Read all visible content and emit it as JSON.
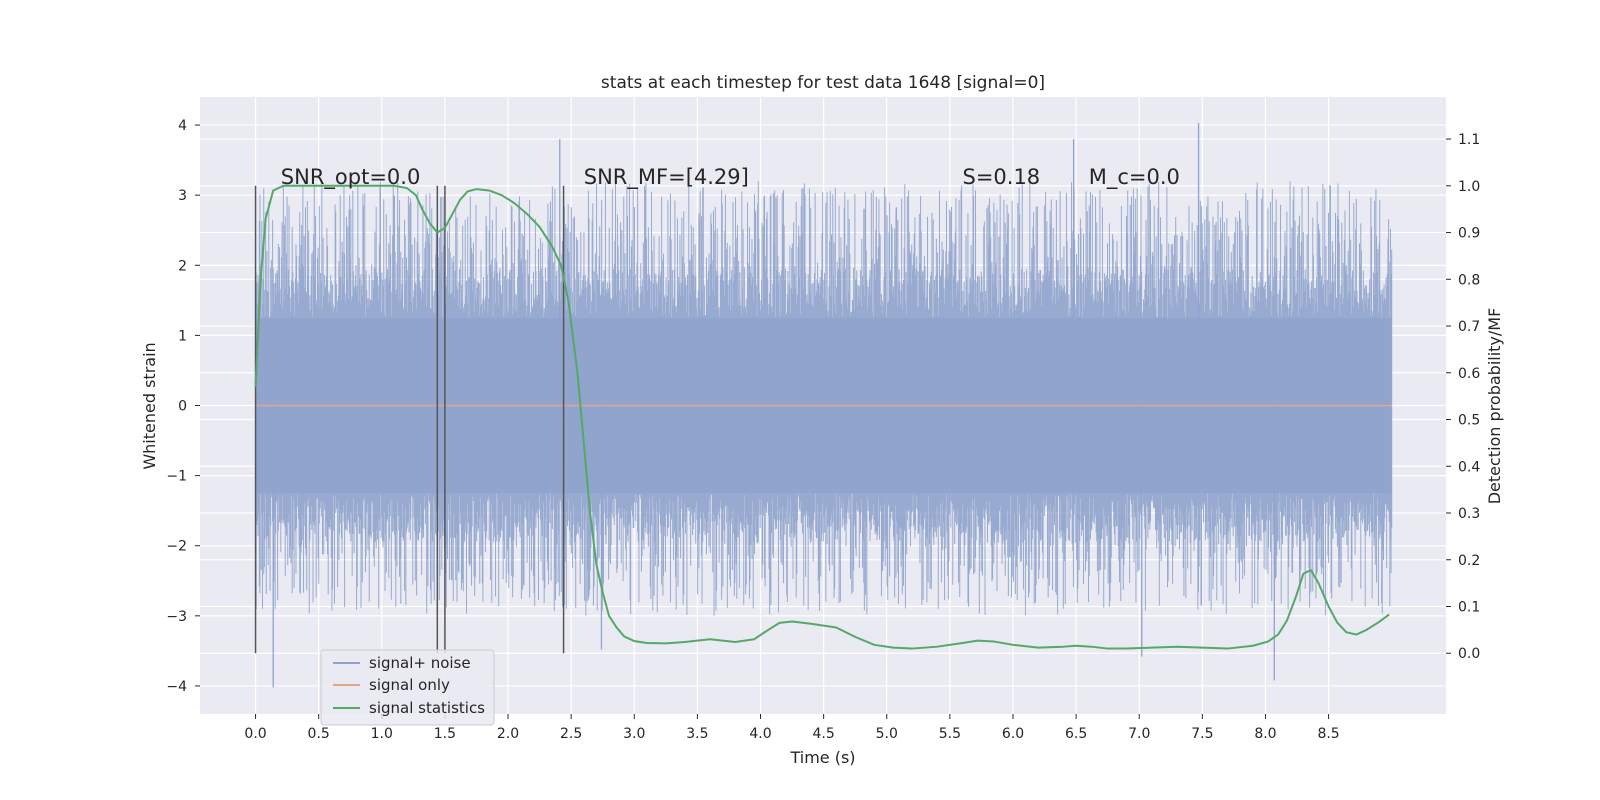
{
  "chart_data": {
    "type": "line",
    "title": "stats at each timestep for test data 1648 [signal=0]",
    "xlabel": "Time (s)",
    "ylabel": "Whitened strain",
    "y2label": "Detection probability/MF",
    "xlim": [
      -0.44,
      9.43
    ],
    "ylim": [
      -4.4,
      4.4
    ],
    "y2lim": [
      -0.13,
      1.19
    ],
    "x_ticks": [
      0.0,
      0.5,
      1.0,
      1.5,
      2.0,
      2.5,
      3.0,
      3.5,
      4.0,
      4.5,
      5.0,
      5.5,
      6.0,
      6.5,
      7.0,
      7.5,
      8.0,
      8.5
    ],
    "x_tick_labels": [
      "0.0",
      "0.5",
      "1.0",
      "1.5",
      "2.0",
      "2.5",
      "3.0",
      "3.5",
      "4.0",
      "4.5",
      "5.0",
      "5.5",
      "6.0",
      "6.5",
      "7.0",
      "7.5",
      "8.0",
      "8.5"
    ],
    "y_ticks": [
      4,
      3,
      2,
      1,
      0,
      -1,
      -2,
      -3,
      -4
    ],
    "y_tick_labels": [
      "4",
      "3",
      "2",
      "1",
      "0",
      "−1",
      "−2",
      "−3",
      "−4"
    ],
    "y2_ticks": [
      1.1,
      1.0,
      0.9,
      0.8,
      0.7,
      0.6,
      0.5,
      0.4,
      0.3,
      0.2,
      0.1,
      0.0
    ],
    "y2_tick_labels": [
      "1.1",
      "1.0",
      "0.9",
      "0.8",
      "0.7",
      "0.6",
      "0.5",
      "0.4",
      "0.3",
      "0.2",
      "0.1",
      "0.0"
    ],
    "grid": true,
    "legend_position": "lower-left",
    "legend": [
      {
        "label": "signal+ noise",
        "color": "#8fa3cc"
      },
      {
        "label": "signal only",
        "color": "#e1a68b"
      },
      {
        "label": "signal statistics",
        "color": "#55a868"
      }
    ],
    "annotations": [
      {
        "label": "SNR_opt=0.0",
        "x": 0.2,
        "y2": 1.0
      },
      {
        "label": "SNR_MF=[4.29]",
        "x": 2.6,
        "y2": 1.0
      },
      {
        "label": "S=0.18",
        "x": 5.6,
        "y2": 1.0
      },
      {
        "label": "M_c=0.0",
        "x": 6.6,
        "y2": 1.0
      }
    ],
    "vertical_markers": [
      0.0,
      1.44,
      1.5,
      2.44
    ],
    "series": [
      {
        "name": "signal+ noise",
        "axis": "left",
        "x_range": [
          0.0,
          9.0
        ],
        "sample_count": 1800,
        "core_band": [
          -1.25,
          1.25
        ],
        "typical_peak_range": [
          -3.0,
          3.2
        ],
        "extremes": [
          {
            "x": 0.14,
            "y": -4.02
          },
          {
            "x": 2.41,
            "y": 3.8
          },
          {
            "x": 6.48,
            "y": 3.8
          },
          {
            "x": 7.47,
            "y": 4.03
          },
          {
            "x": 8.07,
            "y": -3.92
          },
          {
            "x": 2.74,
            "y": -3.48
          },
          {
            "x": 7.02,
            "y": -3.58
          }
        ],
        "color": "#8fa3cc"
      },
      {
        "name": "signal only",
        "axis": "left",
        "x": [
          0.0,
          9.0
        ],
        "y": [
          0.0,
          0.0
        ],
        "color": "#e1a68b"
      },
      {
        "name": "signal statistics",
        "axis": "right",
        "x": [
          0.0,
          0.04,
          0.08,
          0.14,
          0.22,
          0.35,
          0.6,
          0.9,
          1.1,
          1.2,
          1.27,
          1.32,
          1.38,
          1.44,
          1.5,
          1.56,
          1.62,
          1.68,
          1.75,
          1.85,
          1.95,
          2.05,
          2.15,
          2.25,
          2.35,
          2.42,
          2.48,
          2.55,
          2.6,
          2.65,
          2.7,
          2.75,
          2.8,
          2.86,
          2.92,
          3.0,
          3.1,
          3.25,
          3.4,
          3.6,
          3.8,
          3.95,
          4.05,
          4.15,
          4.25,
          4.4,
          4.6,
          4.75,
          4.9,
          5.05,
          5.2,
          5.4,
          5.6,
          5.72,
          5.85,
          6.0,
          6.2,
          6.4,
          6.5,
          6.62,
          6.75,
          6.9,
          7.1,
          7.3,
          7.5,
          7.7,
          7.9,
          8.02,
          8.1,
          8.17,
          8.24,
          8.3,
          8.36,
          8.42,
          8.5,
          8.57,
          8.64,
          8.72,
          8.8,
          8.9,
          8.98
        ],
        "y": [
          0.57,
          0.8,
          0.93,
          0.99,
          1.0,
          1.0,
          1.0,
          1.0,
          1.0,
          0.995,
          0.98,
          0.95,
          0.92,
          0.9,
          0.91,
          0.94,
          0.97,
          0.988,
          0.993,
          0.99,
          0.98,
          0.963,
          0.94,
          0.912,
          0.87,
          0.83,
          0.75,
          0.6,
          0.45,
          0.3,
          0.19,
          0.13,
          0.08,
          0.055,
          0.036,
          0.026,
          0.022,
          0.021,
          0.024,
          0.03,
          0.024,
          0.03,
          0.048,
          0.065,
          0.068,
          0.063,
          0.055,
          0.035,
          0.018,
          0.012,
          0.01,
          0.014,
          0.022,
          0.027,
          0.025,
          0.018,
          0.012,
          0.014,
          0.016,
          0.014,
          0.01,
          0.01,
          0.012,
          0.014,
          0.012,
          0.01,
          0.016,
          0.025,
          0.04,
          0.07,
          0.12,
          0.17,
          0.178,
          0.15,
          0.1,
          0.065,
          0.045,
          0.04,
          0.05,
          0.067,
          0.083
        ],
        "color": "#55a868"
      }
    ]
  }
}
